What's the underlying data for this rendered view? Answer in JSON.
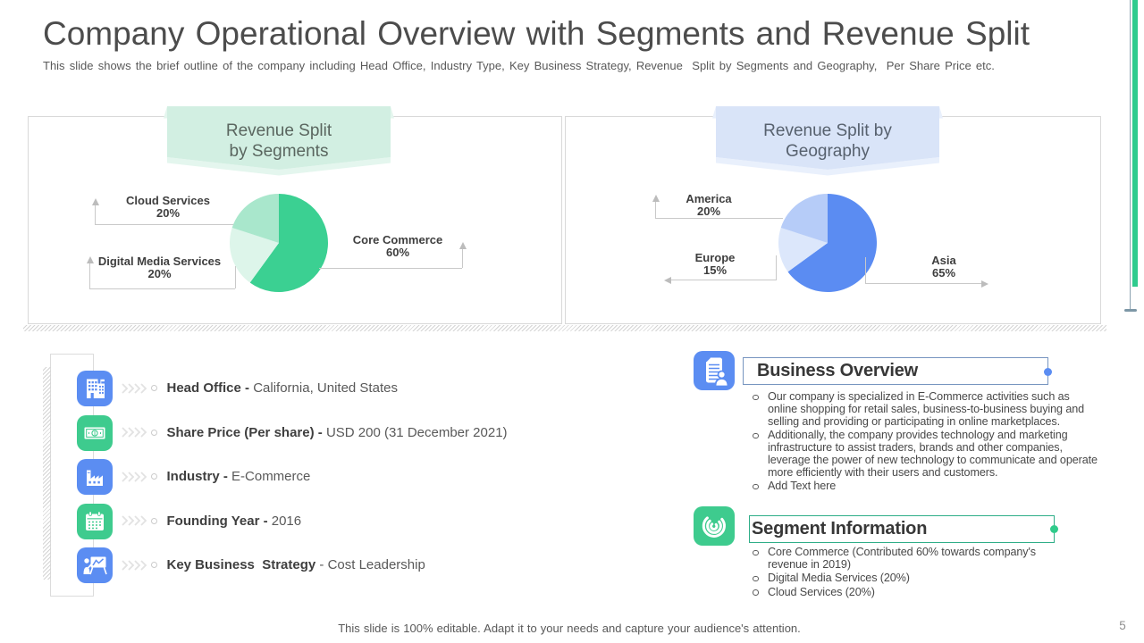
{
  "header": {
    "title": "Company Operational Overview with Segments and Revenue Split",
    "subtitle": "This slide shows the brief outline of the company including Head Office, Industry Type, Key Business Strategy, Revenue  Split by Segments and Geography,  Per Share Price etc."
  },
  "chart_data": [
    {
      "type": "pie",
      "title": "Revenue Split by Segments",
      "title_lines": [
        "Revenue Split",
        "by Segments"
      ],
      "slices": [
        {
          "label": "Core Commerce",
          "value": 60,
          "pct": "60%",
          "color": "#3bd092"
        },
        {
          "label": "Digital Media Services",
          "value": 20,
          "pct": "20%",
          "color": "#ddf5ea"
        },
        {
          "label": "Cloud Services",
          "value": 20,
          "pct": "20%",
          "color": "#a9e7cc"
        }
      ],
      "start_angle_deg": 0,
      "banner_color": "#d2efe2",
      "legend_position": "callouts"
    },
    {
      "type": "pie",
      "title": "Revenue Split by Geography",
      "title_lines": [
        "Revenue Split by",
        "Geography"
      ],
      "slices": [
        {
          "label": "Asia",
          "value": 65,
          "pct": "65%",
          "color": "#5b8cf2"
        },
        {
          "label": "Europe",
          "value": 15,
          "pct": "15%",
          "color": "#dce7fb"
        },
        {
          "label": "America",
          "value": 20,
          "pct": "20%",
          "color": "#b6ccf8"
        }
      ],
      "start_angle_deg": 0,
      "banner_color": "#d9e4f8",
      "legend_position": "callouts"
    }
  ],
  "facts": [
    {
      "icon": "building-icon",
      "label": "Head Office -",
      "value": "California, United States"
    },
    {
      "icon": "banknote-icon",
      "label": "Share Price (Per share) -",
      "value": "USD 200 (31 December 2021)"
    },
    {
      "icon": "factory-icon",
      "label": "Industry -",
      "value": "E-Commerce"
    },
    {
      "icon": "calendar-icon",
      "label": "Founding Year -",
      "value": "2016"
    },
    {
      "icon": "presentation-icon",
      "label": "Key Business  Strategy",
      "value": "- Cost Leadership"
    }
  ],
  "business_overview": {
    "icon": "document-person-icon",
    "title": "Business Overview",
    "accent_color": "#5b8df2",
    "bullets": [
      "Our company is specialized in E-Commerce activities such as online shopping for retail sales, business-to-business buying and selling and providing or participating in online marketplaces.",
      "Additionally, the company provides technology and marketing infrastructure to assist traders, brands and other companies, leverage the power of new technology to  communicate and operate more efficiently with their users and customers.",
      "Add Text here"
    ]
  },
  "segment_information": {
    "icon": "spiral-icon",
    "title": "Segment Information",
    "accent_color": "#2fcb8b",
    "bullets": [
      "Core Commerce (Contributed 60% towards company's revenue in 2019)",
      "Digital Media Services (20%)",
      "Cloud Services (20%)"
    ]
  },
  "footer": {
    "note": "This slide is 100% editable. Adapt it to your needs and capture your audience's attention.",
    "page_number": "5"
  }
}
